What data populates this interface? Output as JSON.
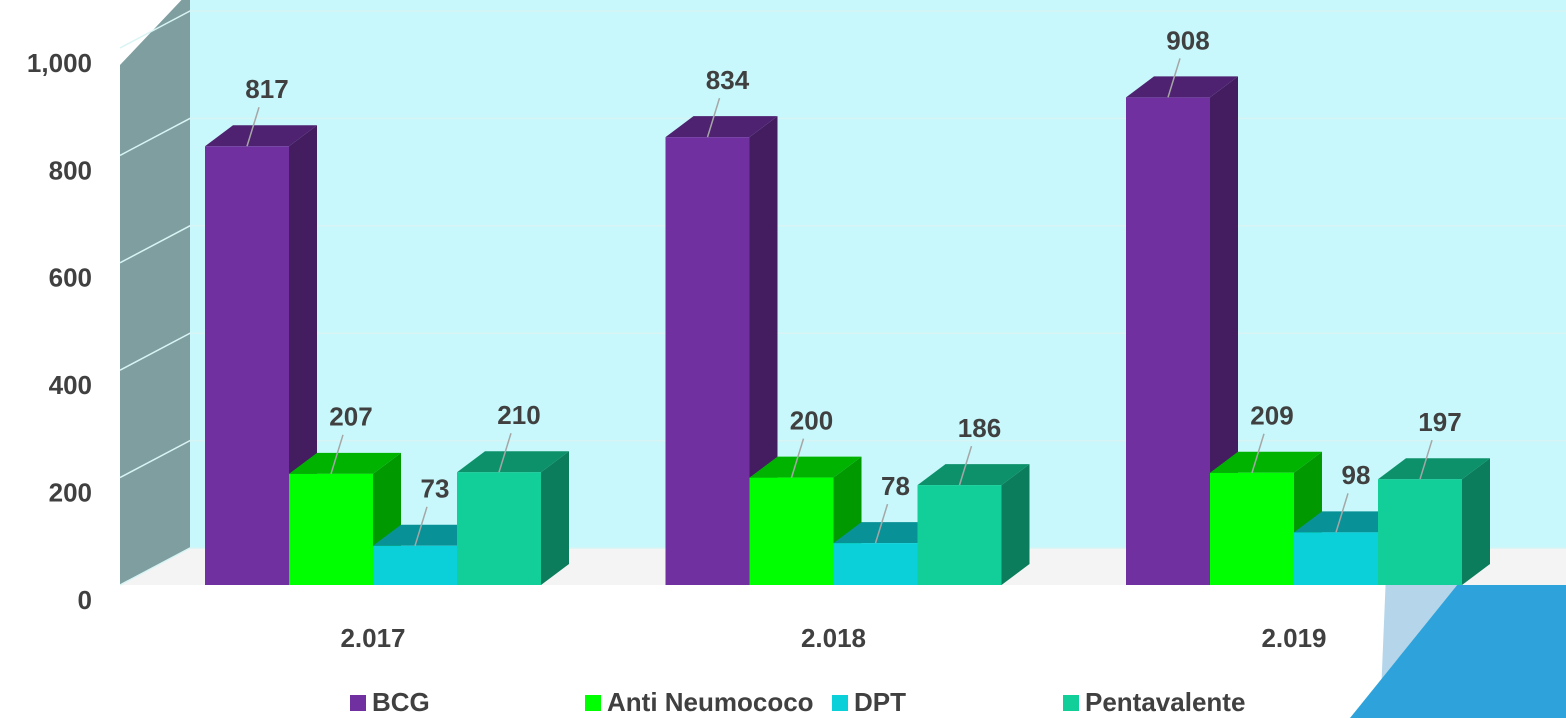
{
  "chart_data": {
    "type": "bar3d",
    "categories": [
      "2.017",
      "2.018",
      "2.019"
    ],
    "series": [
      {
        "name": "BCG",
        "color": "#7030a0",
        "values": [
          817,
          834,
          908
        ]
      },
      {
        "name": "Anti Neumococo",
        "color": "#00ff00",
        "values": [
          207,
          200,
          209
        ]
      },
      {
        "name": "DPT",
        "color": "#0bd0d9",
        "values": [
          73,
          78,
          98
        ]
      },
      {
        "name": "Pentavalente",
        "color": "#12cf99",
        "values": [
          210,
          186,
          197
        ]
      }
    ],
    "ylim": [
      0,
      1000
    ],
    "yticks": [
      0,
      200,
      400,
      600,
      800,
      {
        "value": 1000,
        "label": "1,000"
      }
    ],
    "grid": true,
    "legend": "bottom"
  }
}
